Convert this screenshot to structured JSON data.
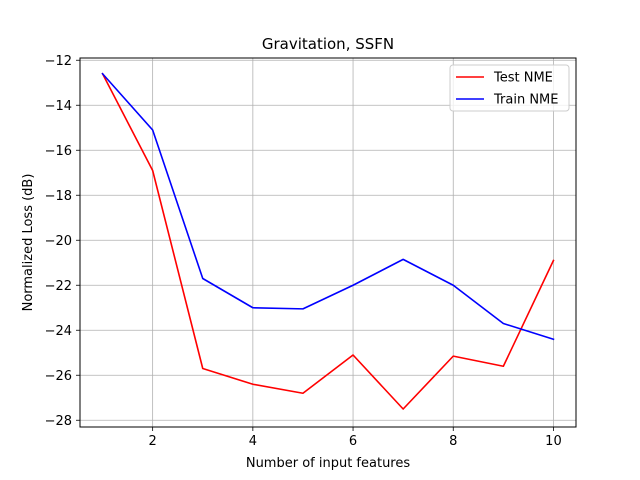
{
  "chart_data": {
    "type": "line",
    "title": "Gravitation, SSFN",
    "xlabel": "Number of input features",
    "ylabel": "Normalized Loss (dB)",
    "x": [
      1,
      2,
      3,
      4,
      5,
      6,
      7,
      8,
      9,
      10
    ],
    "xlim": [
      0.55,
      10.45
    ],
    "ylim": [
      -28.3,
      -11.9
    ],
    "xticks": [
      2,
      4,
      6,
      8,
      10
    ],
    "yticks": [
      -12,
      -14,
      -16,
      -18,
      -20,
      -22,
      -24,
      -26,
      -28
    ],
    "grid": true,
    "legend_position": "top-right",
    "series": [
      {
        "name": "Test NME",
        "color": "#ff0000",
        "values": [
          -12.6,
          -16.9,
          -25.7,
          -26.4,
          -26.8,
          -25.1,
          -27.5,
          -25.15,
          -25.6,
          -20.9
        ]
      },
      {
        "name": "Train NME",
        "color": "#0000ff",
        "values": [
          -12.6,
          -15.1,
          -21.7,
          -23.0,
          -23.05,
          -22.0,
          -20.85,
          -22.0,
          -23.7,
          -24.4
        ]
      }
    ]
  }
}
